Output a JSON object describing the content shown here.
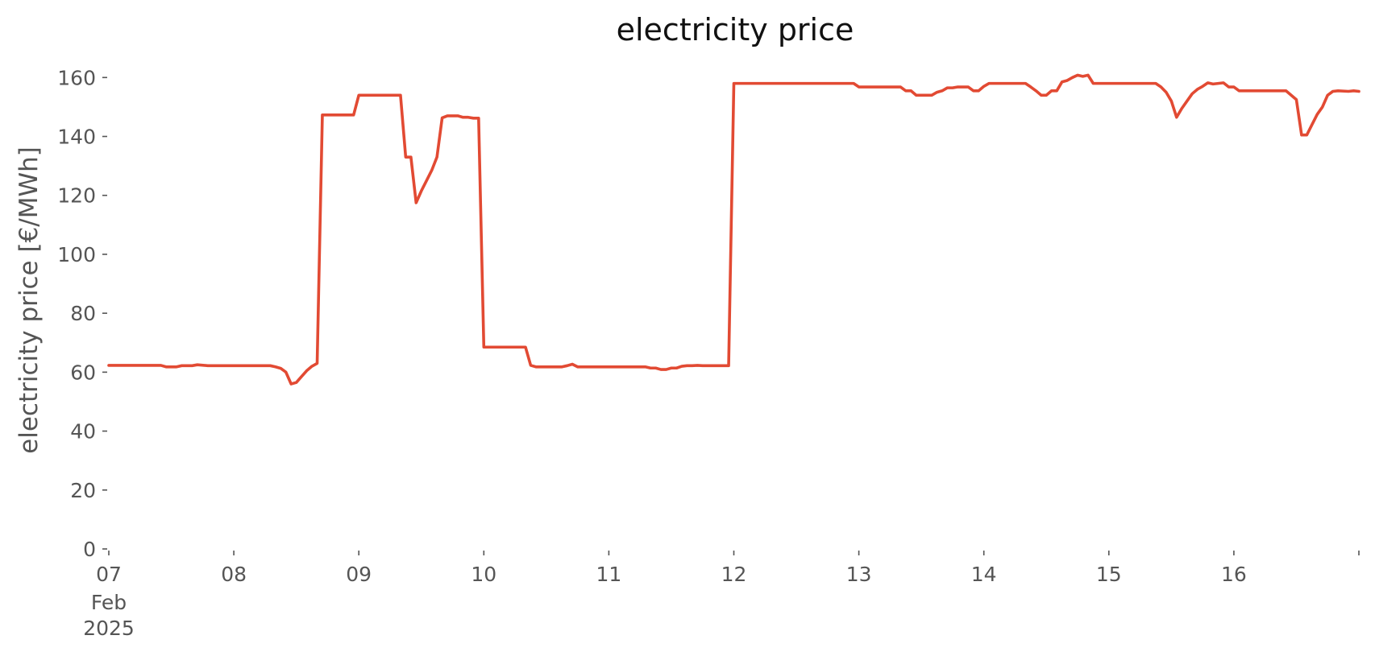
{
  "chart_data": {
    "type": "line",
    "title": "electricity price",
    "xlabel": "",
    "ylabel": "electricity price [€/MWh]",
    "ylim": [
      0,
      165
    ],
    "xlim": [
      "2025-02-07T00:00",
      "2025-02-17T00:00"
    ],
    "grid": false,
    "yticks": [
      "0",
      "20",
      "40",
      "60",
      "80",
      "100",
      "120",
      "140",
      "160"
    ],
    "xticks": [
      {
        "date": "2025-02-07",
        "label": "07",
        "sub1": "Feb",
        "sub2": "2025"
      },
      {
        "date": "2025-02-08",
        "label": "08"
      },
      {
        "date": "2025-02-09",
        "label": "09"
      },
      {
        "date": "2025-02-10",
        "label": "10"
      },
      {
        "date": "2025-02-11",
        "label": "11"
      },
      {
        "date": "2025-02-12",
        "label": "12"
      },
      {
        "date": "2025-02-13",
        "label": "13"
      },
      {
        "date": "2025-02-14",
        "label": "14"
      },
      {
        "date": "2025-02-15",
        "label": "15"
      },
      {
        "date": "2025-02-16",
        "label": "16"
      },
      {
        "date": "2025-02-17",
        "label": ""
      }
    ],
    "series": [
      {
        "color": "#e24a33",
        "points": [
          [
            "2025-02-07T00:00",
            62.3
          ],
          [
            "2025-02-07T10:00",
            62.3
          ],
          [
            "2025-02-07T11:00",
            61.8
          ],
          [
            "2025-02-07T13:00",
            61.8
          ],
          [
            "2025-02-07T14:00",
            62.2
          ],
          [
            "2025-02-07T16:00",
            62.2
          ],
          [
            "2025-02-07T17:00",
            62.5
          ],
          [
            "2025-02-07T19:00",
            62.2
          ],
          [
            "2025-02-08T07:00",
            62.2
          ],
          [
            "2025-02-08T08:00",
            61.8
          ],
          [
            "2025-02-08T09:00",
            61.3
          ],
          [
            "2025-02-08T10:00",
            60.0
          ],
          [
            "2025-02-08T11:00",
            56.0
          ],
          [
            "2025-02-08T12:00",
            56.5
          ],
          [
            "2025-02-08T13:00",
            58.5
          ],
          [
            "2025-02-08T14:00",
            60.5
          ],
          [
            "2025-02-08T15:00",
            62.0
          ],
          [
            "2025-02-08T16:00",
            63.0
          ],
          [
            "2025-02-08T17:00",
            147.3
          ],
          [
            "2025-02-08T23:00",
            147.3
          ],
          [
            "2025-02-09T00:00",
            154.0
          ],
          [
            "2025-02-09T08:00",
            154.0
          ],
          [
            "2025-02-09T09:00",
            133.0
          ],
          [
            "2025-02-09T10:00",
            133.0
          ],
          [
            "2025-02-09T11:00",
            117.5
          ],
          [
            "2025-02-09T12:00",
            121.5
          ],
          [
            "2025-02-09T13:00",
            125.0
          ],
          [
            "2025-02-09T14:00",
            128.5
          ],
          [
            "2025-02-09T15:00",
            133.0
          ],
          [
            "2025-02-09T16:00",
            146.3
          ],
          [
            "2025-02-09T17:00",
            147.0
          ],
          [
            "2025-02-09T19:00",
            147.0
          ],
          [
            "2025-02-09T20:00",
            146.5
          ],
          [
            "2025-02-09T21:00",
            146.5
          ],
          [
            "2025-02-09T22:00",
            146.2
          ],
          [
            "2025-02-09T23:00",
            146.2
          ],
          [
            "2025-02-10T00:00",
            68.5
          ],
          [
            "2025-02-10T08:00",
            68.5
          ],
          [
            "2025-02-10T09:00",
            62.3
          ],
          [
            "2025-02-10T10:00",
            61.8
          ],
          [
            "2025-02-10T15:00",
            61.8
          ],
          [
            "2025-02-10T16:00",
            62.2
          ],
          [
            "2025-02-10T17:00",
            62.7
          ],
          [
            "2025-02-10T18:00",
            61.8
          ],
          [
            "2025-02-11T07:00",
            61.8
          ],
          [
            "2025-02-11T08:00",
            61.4
          ],
          [
            "2025-02-11T09:00",
            61.4
          ],
          [
            "2025-02-11T10:00",
            60.9
          ],
          [
            "2025-02-11T11:00",
            60.9
          ],
          [
            "2025-02-11T12:00",
            61.4
          ],
          [
            "2025-02-11T13:00",
            61.4
          ],
          [
            "2025-02-11T14:00",
            62.0
          ],
          [
            "2025-02-11T15:00",
            62.2
          ],
          [
            "2025-02-11T16:00",
            62.2
          ],
          [
            "2025-02-11T17:00",
            62.3
          ],
          [
            "2025-02-11T18:00",
            62.2
          ],
          [
            "2025-02-11T23:00",
            62.2
          ],
          [
            "2025-02-12T00:00",
            158.0
          ],
          [
            "2025-02-12T23:00",
            158.0
          ],
          [
            "2025-02-13T00:00",
            156.8
          ],
          [
            "2025-02-13T08:00",
            156.8
          ],
          [
            "2025-02-13T09:00",
            155.5
          ],
          [
            "2025-02-13T10:00",
            155.5
          ],
          [
            "2025-02-13T11:00",
            154.0
          ],
          [
            "2025-02-13T14:00",
            154.0
          ],
          [
            "2025-02-13T15:00",
            155.0
          ],
          [
            "2025-02-13T16:00",
            155.5
          ],
          [
            "2025-02-13T17:00",
            156.5
          ],
          [
            "2025-02-13T18:00",
            156.5
          ],
          [
            "2025-02-13T19:00",
            156.8
          ],
          [
            "2025-02-13T21:00",
            156.8
          ],
          [
            "2025-02-13T22:00",
            155.5
          ],
          [
            "2025-02-13T23:00",
            155.5
          ],
          [
            "2025-02-14T00:00",
            157.0
          ],
          [
            "2025-02-14T01:00",
            158.0
          ],
          [
            "2025-02-14T08:00",
            158.0
          ],
          [
            "2025-02-14T09:00",
            156.8
          ],
          [
            "2025-02-14T10:00",
            155.5
          ],
          [
            "2025-02-14T11:00",
            154.0
          ],
          [
            "2025-02-14T12:00",
            154.0
          ],
          [
            "2025-02-14T13:00",
            155.5
          ],
          [
            "2025-02-14T14:00",
            155.5
          ],
          [
            "2025-02-14T15:00",
            158.5
          ],
          [
            "2025-02-14T16:00",
            159.0
          ],
          [
            "2025-02-14T17:00",
            160.0
          ],
          [
            "2025-02-14T18:00",
            160.8
          ],
          [
            "2025-02-14T19:00",
            160.4
          ],
          [
            "2025-02-14T20:00",
            160.8
          ],
          [
            "2025-02-14T21:00",
            158.0
          ],
          [
            "2025-02-15T09:00",
            158.0
          ],
          [
            "2025-02-15T10:00",
            156.8
          ],
          [
            "2025-02-15T11:00",
            155.0
          ],
          [
            "2025-02-15T12:00",
            152.0
          ],
          [
            "2025-02-15T13:00",
            146.5
          ],
          [
            "2025-02-15T14:00",
            149.5
          ],
          [
            "2025-02-15T15:00",
            152.0
          ],
          [
            "2025-02-15T16:00",
            154.5
          ],
          [
            "2025-02-15T17:00",
            156.0
          ],
          [
            "2025-02-15T18:00",
            157.0
          ],
          [
            "2025-02-15T19:00",
            158.2
          ],
          [
            "2025-02-15T20:00",
            157.8
          ],
          [
            "2025-02-15T22:00",
            158.2
          ],
          [
            "2025-02-15T23:00",
            156.8
          ],
          [
            "2025-02-16T00:00",
            156.8
          ],
          [
            "2025-02-16T01:00",
            155.5
          ],
          [
            "2025-02-16T10:00",
            155.5
          ],
          [
            "2025-02-16T11:00",
            154.0
          ],
          [
            "2025-02-16T12:00",
            152.5
          ],
          [
            "2025-02-16T13:00",
            140.5
          ],
          [
            "2025-02-16T14:00",
            140.5
          ],
          [
            "2025-02-16T15:00",
            144.0
          ],
          [
            "2025-02-16T16:00",
            147.5
          ],
          [
            "2025-02-16T17:00",
            150.0
          ],
          [
            "2025-02-16T18:00",
            154.0
          ],
          [
            "2025-02-16T19:00",
            155.3
          ],
          [
            "2025-02-16T20:00",
            155.5
          ],
          [
            "2025-02-16T22:00",
            155.3
          ],
          [
            "2025-02-16T23:00",
            155.5
          ],
          [
            "2025-02-17T00:00",
            155.3
          ]
        ]
      }
    ]
  }
}
